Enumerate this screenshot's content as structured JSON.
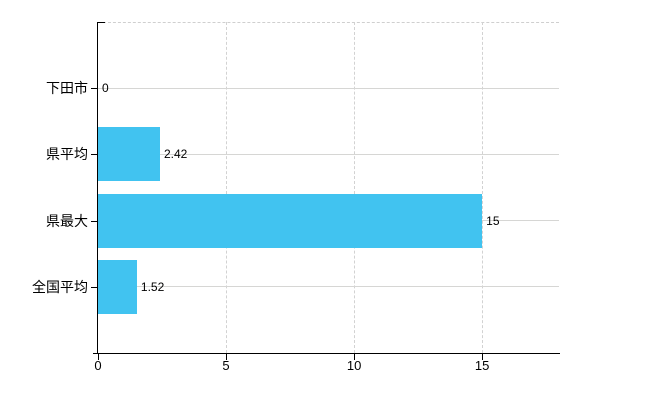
{
  "chart_data": {
    "type": "bar",
    "orientation": "horizontal",
    "title": "",
    "xlabel": "",
    "ylabel": "",
    "categories": [
      "下田市",
      "県平均",
      "県最大",
      "全国平均"
    ],
    "values": [
      0,
      2.42,
      15,
      1.52
    ],
    "value_labels": [
      "0",
      "2.42",
      "15",
      "1.52"
    ],
    "x_ticks": [
      0,
      5,
      10,
      15
    ],
    "x_tick_labels": [
      "0",
      "5",
      "10",
      "15"
    ],
    "xlim": [
      0,
      18
    ],
    "grid": {
      "horizontal_lines": "solid, one per category row",
      "vertical_lines": "dashed, at ticks 5/10/15",
      "plot_top_border": "dashed"
    },
    "legend": "none"
  },
  "colors": {
    "bar": "#41C3F0",
    "axis": "#000000",
    "solid_gridline": "#d6d6d4",
    "dashed_gridline": "#d2d2d2",
    "text": "#000000",
    "background": "#ffffff"
  }
}
